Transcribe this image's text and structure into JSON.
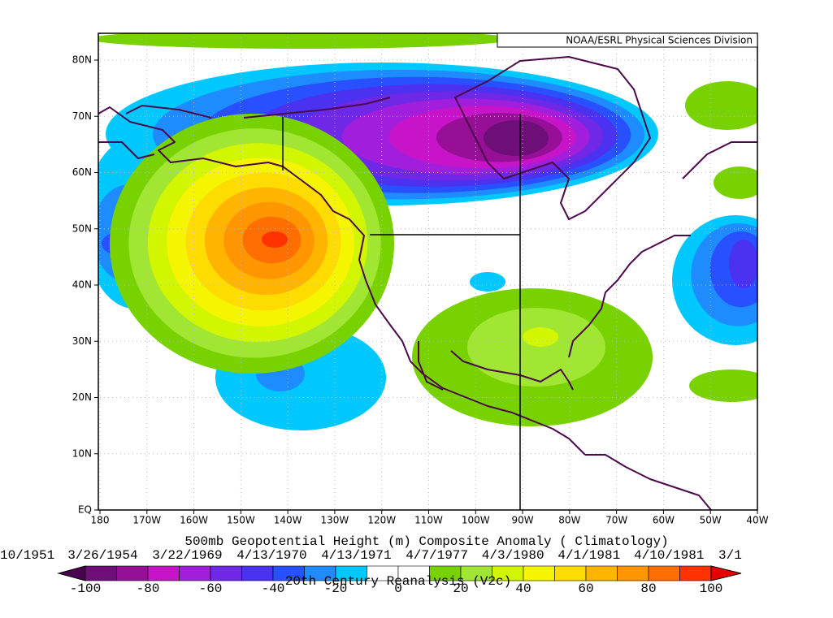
{
  "map": {
    "credit": "NOAA/ESRL Physical Sciences Division",
    "lat_ticks": [
      {
        "value": 80,
        "label": "80N"
      },
      {
        "value": 70,
        "label": "70N"
      },
      {
        "value": 60,
        "label": "60N"
      },
      {
        "value": 50,
        "label": "50N"
      },
      {
        "value": 40,
        "label": "40N"
      },
      {
        "value": 30,
        "label": "30N"
      },
      {
        "value": 20,
        "label": "20N"
      },
      {
        "value": 10,
        "label": "10N"
      },
      {
        "value": 0,
        "label": "EQ"
      }
    ],
    "lon_ticks": [
      {
        "value": -180,
        "label": "180"
      },
      {
        "value": -170,
        "label": "170W"
      },
      {
        "value": -160,
        "label": "160W"
      },
      {
        "value": -150,
        "label": "150W"
      },
      {
        "value": -140,
        "label": "140W"
      },
      {
        "value": -130,
        "label": "130W"
      },
      {
        "value": -120,
        "label": "120W"
      },
      {
        "value": -110,
        "label": "110W"
      },
      {
        "value": -100,
        "label": "100W"
      },
      {
        "value": -90,
        "label": "90W"
      },
      {
        "value": -80,
        "label": "80W"
      },
      {
        "value": -70,
        "label": "70W"
      },
      {
        "value": -60,
        "label": "60W"
      },
      {
        "value": -50,
        "label": "50W"
      },
      {
        "value": -40,
        "label": "40W"
      }
    ],
    "title": "500mb Geopotential Height (m) Composite Anomaly ( Climatology)",
    "dates": [
      "10/1951",
      "3/26/1954",
      "3/22/1969",
      "4/13/1970",
      "4/13/1971",
      "4/7/1977",
      "4/3/1980",
      "4/1/1981",
      "4/10/1981",
      "3/1"
    ],
    "subtitle": "20th Century Reanalysis (V2c)",
    "colorbar": {
      "levels": [
        -100,
        -90,
        -80,
        -70,
        -60,
        -50,
        -40,
        -30,
        -20,
        -10,
        0,
        10,
        20,
        30,
        40,
        50,
        60,
        70,
        80,
        90,
        100
      ],
      "ticks": [
        -100,
        -80,
        -60,
        -40,
        -20,
        0,
        20,
        40,
        60,
        80,
        100
      ],
      "colors": [
        "#4b0050",
        "#6e0e78",
        "#960f96",
        "#c814c8",
        "#a01edc",
        "#6e28e6",
        "#4b32f0",
        "#2850ff",
        "#1e8cff",
        "#00c8ff",
        "#ffffff",
        "#ffffff",
        "#78d200",
        "#a0e632",
        "#d2f500",
        "#f5f500",
        "#ffdc00",
        "#ffb400",
        "#ff9600",
        "#ff6e00",
        "#ff3200",
        "#e60000"
      ]
    }
  }
}
